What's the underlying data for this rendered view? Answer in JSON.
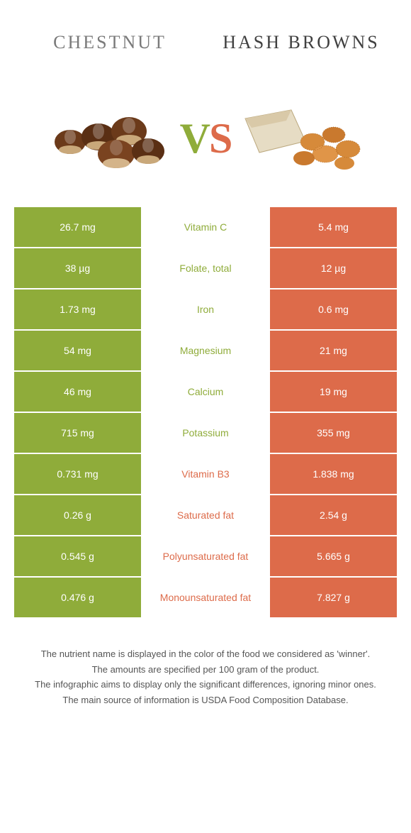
{
  "colors": {
    "left": "#8fac3a",
    "right": "#dd6b4a",
    "header_left": "#7a7a7a",
    "header_right": "#404040",
    "vs_v": "#8fac3a",
    "vs_s": "#dd6b4a",
    "footer_text": "#555555",
    "chestnut_body": "#6b3a1a",
    "chestnut_base": "#c9a87a",
    "hash_bag": "#d9c9a8",
    "hash_piece": "#d68a3a"
  },
  "header": {
    "left": "Chestnut",
    "right": "Hash browns"
  },
  "rows": [
    {
      "left_val": "26.7 mg",
      "label": "Vitamin C",
      "right_val": "5.4 mg",
      "winner": "left"
    },
    {
      "left_val": "38 µg",
      "label": "Folate, total",
      "right_val": "12 µg",
      "winner": "left"
    },
    {
      "left_val": "1.73 mg",
      "label": "Iron",
      "right_val": "0.6 mg",
      "winner": "left"
    },
    {
      "left_val": "54 mg",
      "label": "Magnesium",
      "right_val": "21 mg",
      "winner": "left"
    },
    {
      "left_val": "46 mg",
      "label": "Calcium",
      "right_val": "19 mg",
      "winner": "left"
    },
    {
      "left_val": "715 mg",
      "label": "Potassium",
      "right_val": "355 mg",
      "winner": "left"
    },
    {
      "left_val": "0.731 mg",
      "label": "Vitamin B3",
      "right_val": "1.838 mg",
      "winner": "right"
    },
    {
      "left_val": "0.26 g",
      "label": "Saturated fat",
      "right_val": "2.54 g",
      "winner": "right"
    },
    {
      "left_val": "0.545 g",
      "label": "Polyunsaturated fat",
      "right_val": "5.665 g",
      "winner": "right"
    },
    {
      "left_val": "0.476 g",
      "label": "Monounsaturated fat",
      "right_val": "7.827 g",
      "winner": "right"
    }
  ],
  "footer": [
    "The nutrient name is displayed in the color of the food we considered as 'winner'.",
    "The amounts are specified per 100 gram of the product.",
    "The infographic aims to display only the significant differences, ignoring minor ones.",
    "The main source of information is USDA Food Composition Database."
  ]
}
